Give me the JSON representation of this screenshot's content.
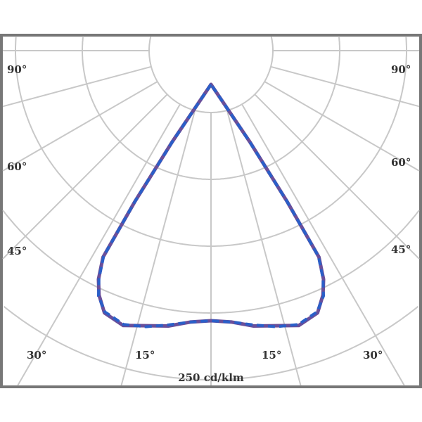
{
  "diagram": {
    "type": "polar-luminous-intensity",
    "unit_label": "250 cd/klm",
    "angle_labels_left": [
      "90°",
      "60°",
      "45°",
      "30°",
      "15°"
    ],
    "angle_labels_right": [
      "90°",
      "60°",
      "45°",
      "30°",
      "15°"
    ],
    "colors": {
      "series_a": "#f0703a",
      "series_b": "#2a5fc8",
      "grid": "#c8c8c8",
      "frame": "#777777"
    },
    "chart_data": {
      "type": "polar",
      "angles_deg": [
        0,
        5,
        10,
        15,
        20,
        25,
        28,
        30,
        32,
        33,
        34,
        35
      ],
      "series": [
        {
          "values": [
            210,
            212,
            218,
            222,
            228,
            224,
            212,
            200,
            181,
            125,
            62,
            0
          ]
        },
        {
          "values": [
            210,
            212,
            217,
            223,
            227,
            223,
            213,
            199,
            180,
            124,
            60,
            0
          ]
        }
      ]
    }
  }
}
